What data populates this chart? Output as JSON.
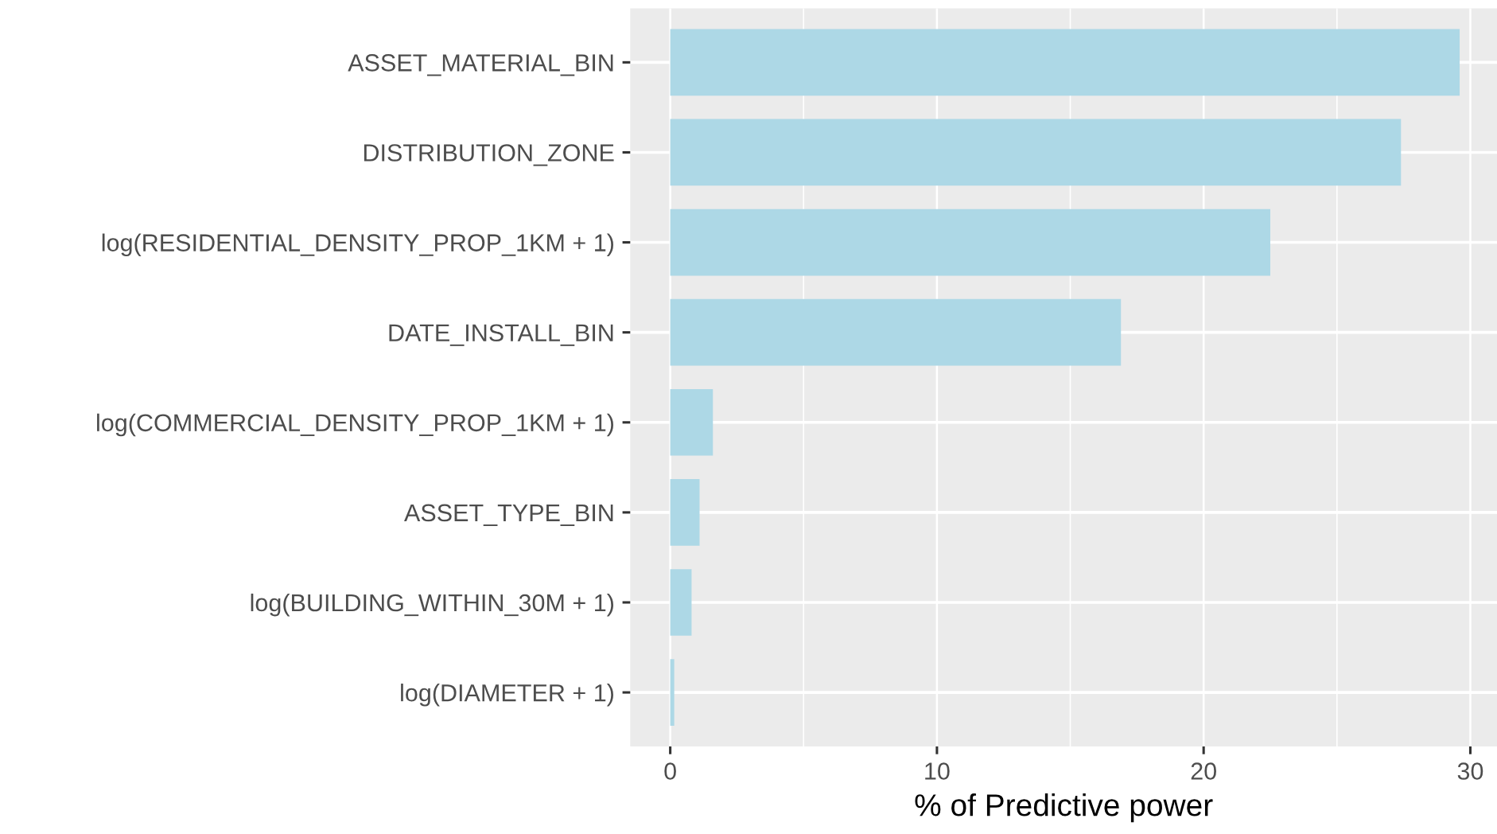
{
  "chart_data": {
    "type": "bar",
    "orientation": "horizontal",
    "xlabel": "% of Predictive power",
    "categories": [
      "ASSET_MATERIAL_BIN",
      "DISTRIBUTION_ZONE",
      "log(RESIDENTIAL_DENSITY_PROP_1KM + 1)",
      "DATE_INSTALL_BIN",
      "log(COMMERCIAL_DENSITY_PROP_1KM + 1)",
      "ASSET_TYPE_BIN",
      "log(BUILDING_WITHIN_30M + 1)",
      "log(DIAMETER + 1)"
    ],
    "values": [
      29.6,
      27.4,
      22.5,
      16.9,
      1.6,
      1.1,
      0.8,
      0.15
    ],
    "color": "#add8e6",
    "xlim": [
      -1.5,
      31.0
    ],
    "xticks": [
      0,
      10,
      20,
      30
    ],
    "grid": true
  }
}
